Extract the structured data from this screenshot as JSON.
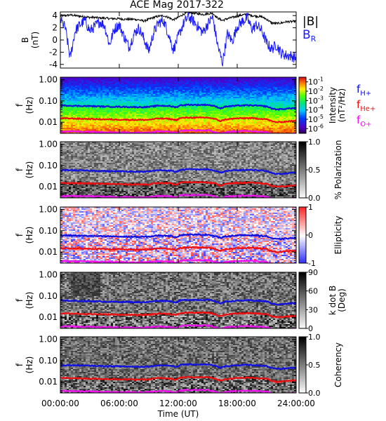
{
  "title": "ACE Mag 2017-322",
  "colors": {
    "total_field": "#000000",
    "radial_field": "#1a1aff",
    "f_h": "#1010e0",
    "f_he": "#ee1010",
    "f_o": "#ee10ee",
    "axis": "#000000"
  },
  "chart_data": [
    {
      "type": "line",
      "panel": "magnetic-field",
      "ylabel_main": "B",
      "ylabel_unit": "(nT)",
      "ylim": [
        -4.6,
        4.6
      ],
      "yticks": [
        -4,
        -2,
        0,
        2,
        4
      ],
      "ytick_labels": [
        "-4",
        "-2",
        "0",
        "2",
        "4"
      ],
      "x_unit": "hours UT",
      "xlim": [
        0,
        24
      ],
      "series": [
        {
          "name": "|B|",
          "color": "#000000",
          "x": [
            0,
            0.5,
            1,
            1.5,
            2,
            2.5,
            3,
            3.5,
            4,
            4.5,
            5,
            5.5,
            6,
            6.5,
            7,
            7.5,
            8,
            8.5,
            9,
            9.5,
            10,
            10.5,
            11,
            11.5,
            12,
            12.5,
            13,
            13.5,
            14,
            14.5,
            15,
            15.5,
            16,
            16.5,
            17,
            17.5,
            18,
            18.5,
            19,
            19.5,
            20,
            20.5,
            21,
            21.5,
            22,
            22.5,
            23,
            23.5,
            24
          ],
          "values": [
            4.0,
            4.0,
            4.1,
            4.0,
            3.9,
            3.8,
            3.7,
            3.7,
            3.6,
            3.6,
            3.5,
            3.5,
            3.5,
            3.4,
            3.4,
            3.4,
            3.3,
            3.1,
            3.4,
            3.7,
            3.9,
            4.0,
            3.7,
            3.3,
            3.7,
            4.2,
            4.5,
            4.4,
            4.3,
            4.2,
            4.3,
            4.4,
            3.6,
            3.2,
            3.5,
            3.7,
            3.9,
            4.1,
            4.2,
            4.0,
            3.9,
            3.8,
            3.4,
            2.8,
            2.7,
            2.8,
            3.0,
            3.0,
            3.1
          ]
        },
        {
          "name": "B_R",
          "color": "#1a1aff",
          "x": [
            0,
            0.5,
            1,
            1.5,
            2,
            2.5,
            3,
            3.5,
            4,
            4.5,
            5,
            5.5,
            6,
            6.5,
            7,
            7.5,
            8,
            8.5,
            9,
            9.5,
            10,
            10.5,
            11,
            11.5,
            12,
            12.5,
            13,
            13.5,
            14,
            14.5,
            15,
            15.5,
            16,
            16.5,
            17,
            17.5,
            18,
            18.5,
            19,
            19.5,
            20,
            20.5,
            21,
            21.5,
            22,
            22.5,
            23,
            23.5,
            24
          ],
          "values": [
            3.4,
            2.0,
            -3.0,
            1.5,
            2.5,
            3.2,
            1.5,
            2.2,
            3.0,
            2.4,
            -0.8,
            1.8,
            2.5,
            0.5,
            -1.2,
            1.0,
            2.0,
            0.2,
            -1.8,
            1.2,
            2.8,
            3.2,
            1.0,
            -1.6,
            0.5,
            2.6,
            3.8,
            3.2,
            2.2,
            1.2,
            2.6,
            3.8,
            -0.8,
            -3.8,
            1.0,
            -0.2,
            2.2,
            3.0,
            3.6,
            1.8,
            2.5,
            1.5,
            -0.5,
            -1.5,
            -0.8,
            -2.2,
            -2.5,
            -2.6,
            -3.0
          ]
        }
      ],
      "legend": [
        {
          "text": "|B|",
          "sub": "",
          "color": "#000000"
        },
        {
          "text": "B",
          "sub": "R",
          "color": "#1a1aff"
        }
      ]
    },
    {
      "type": "heatmap",
      "panel": "intensity",
      "ylabel_main": "f",
      "ylabel_unit": "(Hz)",
      "yscale": "log",
      "ylim": [
        0.003,
        1.3
      ],
      "yticks": [
        0.01,
        0.1,
        1.0
      ],
      "ytick_labels": [
        "0.01",
        "0.10",
        "1.00"
      ],
      "colorbar_label": "Intensity",
      "colorbar_label2": "(nT²/Hz)",
      "colorscale": "rainbow",
      "colorbar_ticks": [
        {
          "base": "10",
          "exp": "-1"
        },
        {
          "base": "10",
          "exp": "-2"
        },
        {
          "base": "10",
          "exp": "-3"
        },
        {
          "base": "10",
          "exp": "-4"
        },
        {
          "base": "10",
          "exp": "-5"
        },
        {
          "base": "10",
          "exp": "-6"
        }
      ],
      "legend": [
        {
          "text": "f",
          "sub": "H+",
          "color": "#1010e0"
        },
        {
          "text": "f",
          "sub": "He+",
          "color": "#ee1010"
        },
        {
          "text": "f",
          "sub": "O+",
          "color": "#ee10ee"
        }
      ]
    },
    {
      "type": "heatmap",
      "panel": "polarization",
      "ylabel_main": "f",
      "ylabel_unit": "(Hz)",
      "yscale": "log",
      "ylim": [
        0.003,
        1.3
      ],
      "yticks": [
        0.01,
        0.1,
        1.0
      ],
      "ytick_labels": [
        "0.01",
        "0.10",
        "1.00"
      ],
      "colorbar_label": "% Polarization",
      "colorscale": "gray",
      "colorbar_ticks": [
        "1.0",
        "0.5",
        "0.0"
      ]
    },
    {
      "type": "heatmap",
      "panel": "ellipticity",
      "ylabel_main": "f",
      "ylabel_unit": "(Hz)",
      "yscale": "log",
      "ylim": [
        0.003,
        1.3
      ],
      "yticks": [
        0.01,
        0.1,
        1.0
      ],
      "ytick_labels": [
        "0.01",
        "0.10",
        "1.00"
      ],
      "colorbar_label": "Ellipticity",
      "colorscale": "blue-white-red",
      "colorbar_ticks": [
        "1",
        "0",
        "-1"
      ]
    },
    {
      "type": "heatmap",
      "panel": "k-dot-b",
      "ylabel_main": "f",
      "ylabel_unit": "(Hz)",
      "yscale": "log",
      "ylim": [
        0.003,
        1.3
      ],
      "yticks": [
        0.01,
        0.1,
        1.0
      ],
      "ytick_labels": [
        "0.01",
        "0.10",
        "1.00"
      ],
      "colorbar_label": "k dot B",
      "colorbar_label2": "(Deg)",
      "colorscale": "gray",
      "colorbar_ticks": [
        "90",
        "60",
        "30",
        "0"
      ]
    },
    {
      "type": "heatmap",
      "panel": "coherency",
      "ylabel_main": "f",
      "ylabel_unit": "(Hz)",
      "yscale": "log",
      "ylim": [
        0.003,
        1.3
      ],
      "yticks": [
        0.01,
        0.1,
        1.0
      ],
      "ytick_labels": [
        "0.01",
        "0.10",
        "1.00"
      ],
      "colorbar_label": "Coherency",
      "colorscale": "gray",
      "colorbar_ticks": [
        "1.0",
        "0.5",
        "0.0"
      ]
    }
  ],
  "gyrofrequency_lines": {
    "x": [
      0,
      1,
      2,
      3,
      4,
      5,
      6,
      7,
      8,
      9,
      10,
      11,
      11.8,
      12.2,
      13,
      14,
      15,
      15.8,
      16.3,
      16.8,
      17.2,
      18,
      19,
      20,
      21,
      21.5,
      22,
      22.5,
      23,
      23.5,
      24
    ],
    "f_h": [
      0.06,
      0.06,
      0.058,
      0.057,
      0.055,
      0.054,
      0.053,
      0.052,
      0.051,
      0.052,
      0.06,
      0.058,
      0.05,
      0.062,
      0.066,
      0.065,
      0.066,
      0.055,
      0.045,
      0.054,
      0.056,
      0.06,
      0.062,
      0.06,
      0.055,
      0.044,
      0.04,
      0.041,
      0.043,
      0.045,
      0.046
    ],
    "f_he": [
      0.015,
      0.015,
      0.0145,
      0.0142,
      0.0138,
      0.0135,
      0.0133,
      0.013,
      0.0128,
      0.013,
      0.015,
      0.0145,
      0.0125,
      0.0155,
      0.0165,
      0.0162,
      0.0165,
      0.0138,
      0.0112,
      0.0135,
      0.014,
      0.015,
      0.0155,
      0.015,
      0.0138,
      0.011,
      0.01,
      0.0102,
      0.0108,
      0.0112,
      0.0115
    ],
    "f_o": [
      0.0037,
      0.0037,
      0.0036,
      0.0036,
      0.0035,
      0.0034,
      0.0033,
      0.0033,
      0.0032,
      0.0033,
      0.0037,
      0.0036,
      0.0031,
      0.0039,
      0.0041,
      0.0041,
      0.0041,
      0.0034,
      0.0028,
      0.0034,
      0.0035,
      0.0037,
      0.0039,
      0.0037,
      0.0034,
      0.0028,
      0.0025,
      0.0026,
      0.0027,
      0.0028,
      0.0029
    ]
  },
  "x_axis": {
    "ticks": [
      0,
      6,
      12,
      18,
      24
    ],
    "tick_labels": [
      "00:00:00",
      "06:00:00",
      "12:00:00",
      "18:00:00",
      "24:00:00"
    ],
    "label": "Time (UT)"
  }
}
